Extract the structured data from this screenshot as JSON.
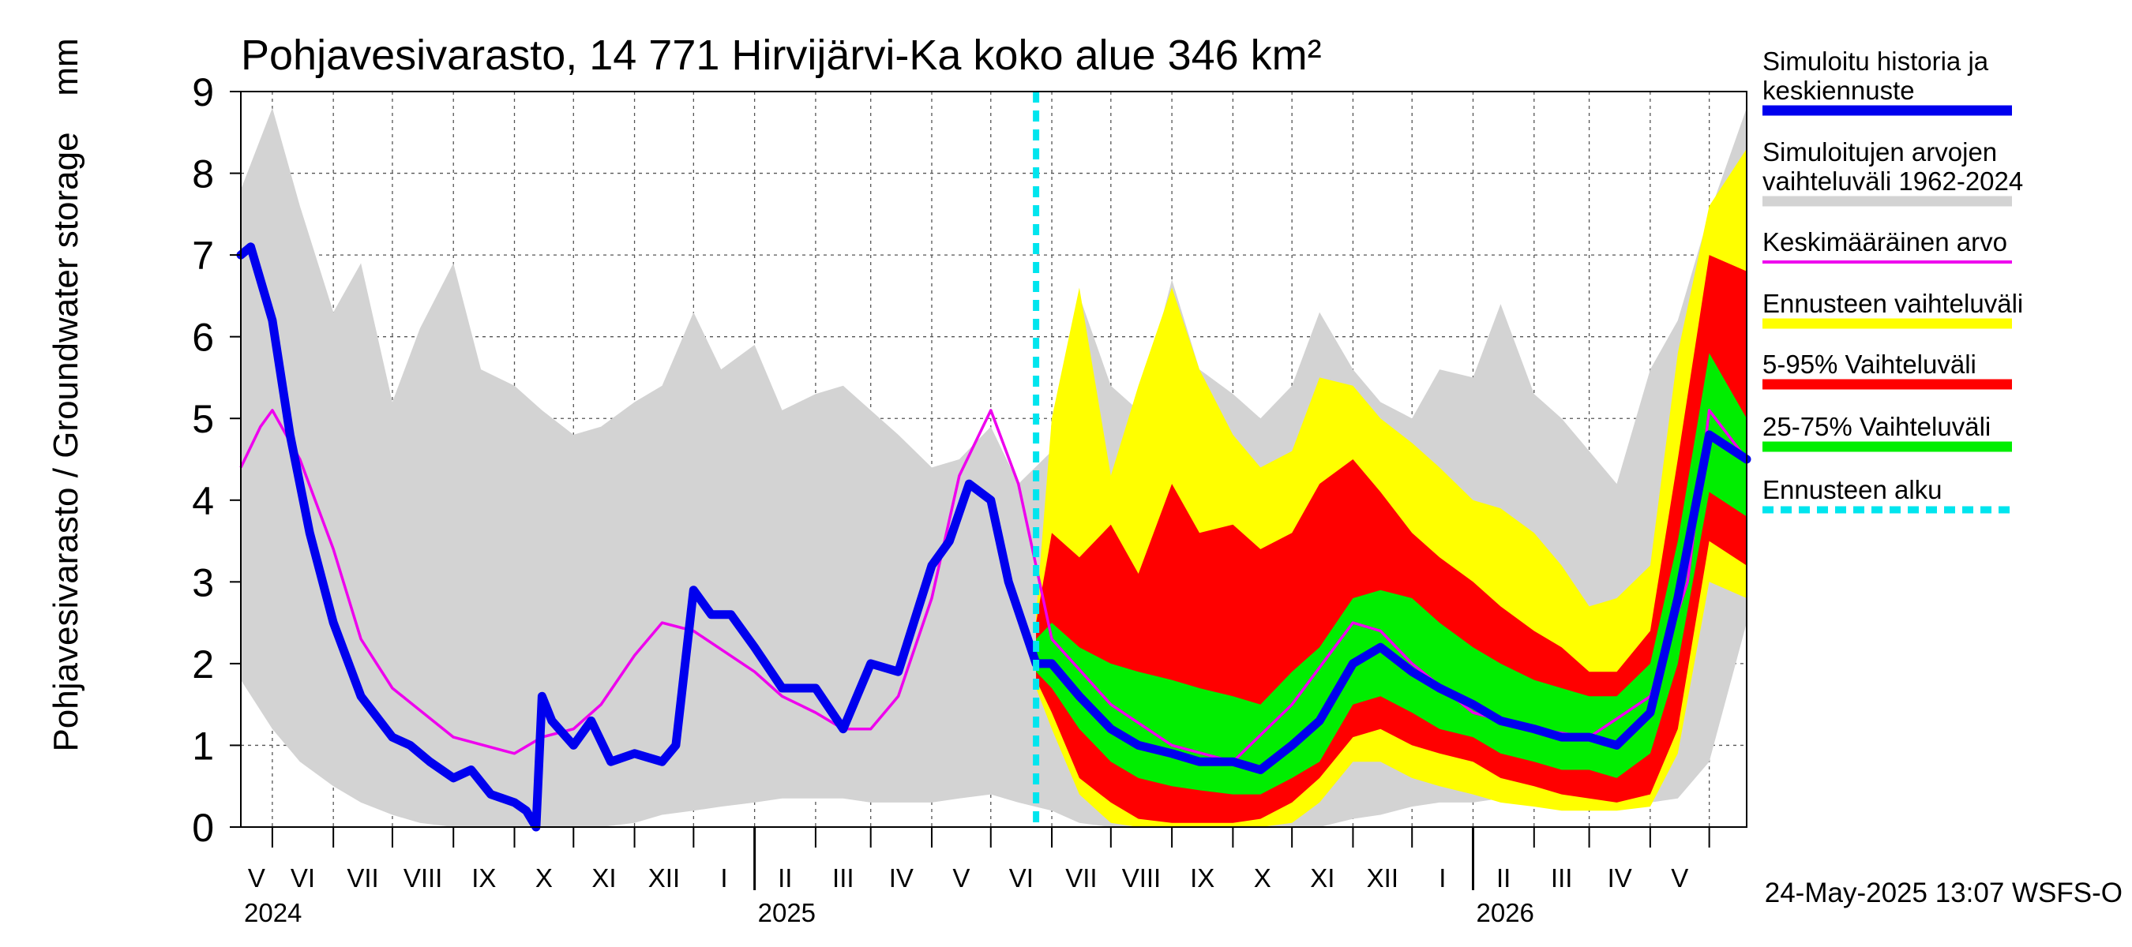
{
  "chart_data": {
    "type": "area",
    "title": "Pohjavesivarasto, 14 771 Hirvijärvi-Ka koko alue 346 km²",
    "ylabel": "Pohjavesivarasto / Groundwater storage",
    "yunit": "mm",
    "ylim": [
      0,
      9
    ],
    "yticks": [
      0,
      1,
      2,
      3,
      4,
      5,
      6,
      7,
      8,
      9
    ],
    "xlim": [
      "2024-04-15",
      "2026-05-20"
    ],
    "x_month_labels": [
      "V",
      "VI",
      "VII",
      "VIII",
      "IX",
      "X",
      "XI",
      "XII",
      "I",
      "II",
      "III",
      "IV",
      "V",
      "VI",
      "VII",
      "VIII",
      "IX",
      "X",
      "XI",
      "XII",
      "I",
      "II",
      "III",
      "IV",
      "V"
    ],
    "x_year_labels": [
      "2024",
      "2025",
      "2026"
    ],
    "forecast_start": "2025-05-24",
    "timestamp": "24-May-2025 13:07 WSFS-O",
    "grid": true,
    "legend_position": "right",
    "legend": [
      {
        "key": "history",
        "label_lines": [
          "Simuloitu historia ja",
          "keskiennuste"
        ],
        "color": "#0000ee",
        "style": "thick-line"
      },
      {
        "key": "range",
        "label_lines": [
          "Simuloitujen arvojen",
          "vaihteluväli 1962-2024"
        ],
        "color": "#d3d3d3",
        "style": "thick-line"
      },
      {
        "key": "mean",
        "label_lines": [
          "Keskimääräinen arvo"
        ],
        "color": "#ee00ee",
        "style": "line"
      },
      {
        "key": "fc_range",
        "label_lines": [
          "Ennusteen vaihteluväli"
        ],
        "color": "#ffff00",
        "style": "thick-line"
      },
      {
        "key": "p5_95",
        "label_lines": [
          "5-95% Vaihteluväli"
        ],
        "color": "#ff0000",
        "style": "thick-line"
      },
      {
        "key": "p25_75",
        "label_lines": [
          "25-75% Vaihteluväli"
        ],
        "color": "#00ee00",
        "style": "thick-line"
      },
      {
        "key": "fc_start",
        "label_lines": [
          "Ennusteen alku"
        ],
        "color": "#00e5ee",
        "style": "dashed-line"
      }
    ],
    "series": {
      "hist_range": {
        "x": [
          "2024-04-15",
          "2024-05-01",
          "2024-05-15",
          "2024-06-01",
          "2024-06-15",
          "2024-07-01",
          "2024-07-15",
          "2024-08-01",
          "2024-08-15",
          "2024-09-01",
          "2024-09-15",
          "2024-10-01",
          "2024-10-15",
          "2024-11-01",
          "2024-11-15",
          "2024-12-01",
          "2024-12-15",
          "2025-01-01",
          "2025-01-15",
          "2025-02-01",
          "2025-02-15",
          "2025-03-01",
          "2025-03-15",
          "2025-04-01",
          "2025-04-15",
          "2025-05-01",
          "2025-05-15",
          "2025-06-01",
          "2025-06-15",
          "2025-07-01",
          "2025-07-15",
          "2025-08-01",
          "2025-08-15",
          "2025-09-01",
          "2025-09-15",
          "2025-10-01",
          "2025-10-15",
          "2025-11-01",
          "2025-11-15",
          "2025-12-01",
          "2025-12-15",
          "2026-01-01",
          "2026-01-15",
          "2026-02-01",
          "2026-02-15",
          "2026-03-01",
          "2026-03-15",
          "2026-04-01",
          "2026-04-15",
          "2026-05-01",
          "2026-05-20"
        ],
        "low": [
          1.8,
          1.2,
          0.8,
          0.5,
          0.3,
          0.15,
          0.05,
          0,
          0,
          0,
          0,
          0,
          0,
          0.05,
          0.15,
          0.2,
          0.25,
          0.3,
          0.35,
          0.35,
          0.35,
          0.3,
          0.3,
          0.3,
          0.35,
          0.4,
          0.3,
          0.2,
          0.05,
          0,
          0,
          0,
          0,
          0,
          0,
          0,
          0,
          0.1,
          0.15,
          0.25,
          0.3,
          0.3,
          0.35,
          0.35,
          0.3,
          0.3,
          0.3,
          0.3,
          0.35,
          0.8,
          2.5
        ],
        "high": [
          7.8,
          8.8,
          7.6,
          6.3,
          6.9,
          5.2,
          6.1,
          6.9,
          5.6,
          5.4,
          5.1,
          4.8,
          4.9,
          5.2,
          5.4,
          6.3,
          5.6,
          5.9,
          5.1,
          5.3,
          5.4,
          5.1,
          4.8,
          4.4,
          4.5,
          4.9,
          4.2,
          4.6,
          6.5,
          5.4,
          5.1,
          6.7,
          5.6,
          5.3,
          5.0,
          5.4,
          6.3,
          5.6,
          5.2,
          5.0,
          5.6,
          5.5,
          6.4,
          5.3,
          5.0,
          4.6,
          4.2,
          5.6,
          6.2,
          7.5,
          8.8
        ]
      },
      "simulated": {
        "x": [
          "2024-04-15",
          "2024-04-20",
          "2024-05-01",
          "2024-05-10",
          "2024-05-20",
          "2024-06-01",
          "2024-06-15",
          "2024-07-01",
          "2024-07-10",
          "2024-07-20",
          "2024-08-01",
          "2024-08-10",
          "2024-08-20",
          "2024-09-01",
          "2024-09-07",
          "2024-09-12",
          "2024-09-15",
          "2024-09-20",
          "2024-10-01",
          "2024-10-10",
          "2024-10-20",
          "2024-11-01",
          "2024-11-15",
          "2024-11-22",
          "2024-12-01",
          "2024-12-10",
          "2024-12-20",
          "2025-01-01",
          "2025-01-15",
          "2025-02-01",
          "2025-02-15",
          "2025-03-01",
          "2025-03-15",
          "2025-04-01",
          "2025-04-10",
          "2025-04-20",
          "2025-05-01",
          "2025-05-10",
          "2025-05-24"
        ],
        "y": [
          7.0,
          7.1,
          6.2,
          4.8,
          3.6,
          2.5,
          1.6,
          1.1,
          1.0,
          0.8,
          0.6,
          0.7,
          0.4,
          0.3,
          0.2,
          0.0,
          1.6,
          1.3,
          1.0,
          1.3,
          0.8,
          0.9,
          0.8,
          1.0,
          2.9,
          2.6,
          2.6,
          2.2,
          1.7,
          1.7,
          1.2,
          2.0,
          1.9,
          3.2,
          3.5,
          4.2,
          4.0,
          3.0,
          2.0
        ]
      },
      "mean": {
        "x": [
          "2024-04-15",
          "2024-04-25",
          "2024-05-01",
          "2024-05-15",
          "2024-06-01",
          "2024-06-15",
          "2024-07-01",
          "2024-08-01",
          "2024-09-01",
          "2024-09-15",
          "2024-10-01",
          "2024-10-15",
          "2024-11-01",
          "2024-11-15",
          "2024-12-01",
          "2025-01-01",
          "2025-01-15",
          "2025-02-01",
          "2025-02-15",
          "2025-03-01",
          "2025-03-15",
          "2025-04-01",
          "2025-04-15",
          "2025-05-01",
          "2025-05-15",
          "2025-06-01",
          "2025-07-01",
          "2025-08-01",
          "2025-09-01",
          "2025-10-01",
          "2025-11-01",
          "2025-11-15",
          "2025-12-01",
          "2026-01-01",
          "2026-02-01",
          "2026-03-01",
          "2026-04-01",
          "2026-04-20",
          "2026-05-01",
          "2026-05-20"
        ],
        "y": [
          4.4,
          4.9,
          5.1,
          4.5,
          3.4,
          2.3,
          1.7,
          1.1,
          0.9,
          1.1,
          1.2,
          1.5,
          2.1,
          2.5,
          2.4,
          1.9,
          1.6,
          1.4,
          1.2,
          1.2,
          1.6,
          2.8,
          4.3,
          5.1,
          4.2,
          2.3,
          1.5,
          1.0,
          0.8,
          1.5,
          2.5,
          2.4,
          2.0,
          1.4,
          1.2,
          1.1,
          1.6,
          3.0,
          5.1,
          4.5
        ]
      },
      "forecast": {
        "x": [
          "2025-05-24",
          "2025-06-01",
          "2025-06-15",
          "2025-07-01",
          "2025-07-15",
          "2025-08-01",
          "2025-08-15",
          "2025-09-01",
          "2025-09-15",
          "2025-10-01",
          "2025-10-15",
          "2025-11-01",
          "2025-11-15",
          "2025-12-01",
          "2025-12-15",
          "2026-01-01",
          "2026-01-15",
          "2026-02-01",
          "2026-02-15",
          "2026-03-01",
          "2026-03-15",
          "2026-04-01",
          "2026-04-15",
          "2026-05-01",
          "2026-05-20"
        ],
        "median": [
          2.0,
          2.0,
          1.6,
          1.2,
          1.0,
          0.9,
          0.8,
          0.8,
          0.7,
          1.0,
          1.3,
          2.0,
          2.2,
          1.9,
          1.7,
          1.5,
          1.3,
          1.2,
          1.1,
          1.1,
          1.0,
          1.4,
          2.8,
          4.8,
          4.5
        ],
        "p25": [
          1.9,
          1.7,
          1.2,
          0.8,
          0.6,
          0.5,
          0.45,
          0.4,
          0.4,
          0.6,
          0.8,
          1.5,
          1.6,
          1.4,
          1.2,
          1.1,
          0.9,
          0.8,
          0.7,
          0.7,
          0.6,
          0.9,
          2.0,
          4.1,
          3.8
        ],
        "p75": [
          2.3,
          2.5,
          2.2,
          2.0,
          1.9,
          1.8,
          1.7,
          1.6,
          1.5,
          1.9,
          2.2,
          2.8,
          2.9,
          2.8,
          2.5,
          2.2,
          2.0,
          1.8,
          1.7,
          1.6,
          1.6,
          2.0,
          3.5,
          5.8,
          5.0
        ],
        "p5": [
          1.8,
          1.4,
          0.6,
          0.3,
          0.1,
          0.05,
          0.05,
          0.05,
          0.1,
          0.3,
          0.6,
          1.1,
          1.2,
          1.0,
          0.9,
          0.8,
          0.6,
          0.5,
          0.4,
          0.35,
          0.3,
          0.4,
          1.2,
          3.5,
          3.2
        ],
        "p95": [
          2.5,
          3.6,
          3.3,
          3.7,
          3.1,
          4.2,
          3.6,
          3.7,
          3.4,
          3.6,
          4.2,
          4.5,
          4.1,
          3.6,
          3.3,
          3.0,
          2.7,
          2.4,
          2.2,
          1.9,
          1.9,
          2.4,
          4.5,
          7.0,
          6.8
        ],
        "min": [
          1.7,
          1.2,
          0.4,
          0.05,
          0,
          0,
          0,
          0,
          0,
          0.05,
          0.3,
          0.8,
          0.8,
          0.6,
          0.5,
          0.4,
          0.3,
          0.25,
          0.2,
          0.2,
          0.2,
          0.25,
          0.9,
          3.0,
          2.8
        ],
        "max": [
          2.6,
          5.0,
          6.6,
          4.3,
          5.4,
          6.6,
          5.6,
          4.8,
          4.4,
          4.6,
          5.5,
          5.4,
          5.0,
          4.7,
          4.4,
          4.0,
          3.9,
          3.6,
          3.2,
          2.7,
          2.8,
          3.2,
          5.8,
          7.6,
          8.3
        ]
      }
    }
  }
}
